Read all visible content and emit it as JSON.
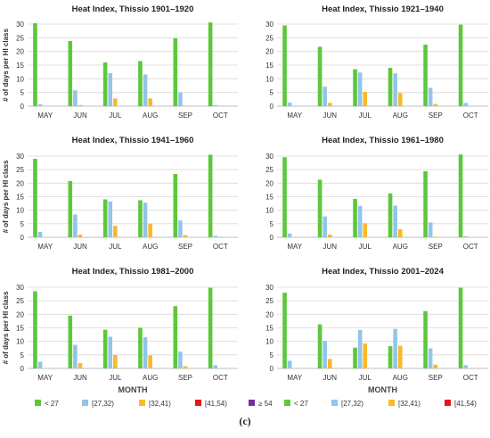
{
  "caption": "(c)",
  "chart_data": [
    {
      "type": "bar",
      "title": "Heat Index, Thissio 1901–1920",
      "ylabel": "# of days per HI class",
      "xlabel": "",
      "categories": [
        "MAY",
        "JUN",
        "JUL",
        "AUG",
        "SEP",
        "OCT"
      ],
      "ylim": [
        0,
        30
      ],
      "yticks": [
        0,
        5,
        10,
        15,
        20,
        25,
        30
      ],
      "series": [
        {
          "name": "< 27",
          "color": "#5cc83a",
          "values": [
            30.3,
            23.8,
            16.0,
            16.5,
            24.8,
            30.6
          ]
        },
        {
          "name": "[27,32)",
          "color": "#92c5ea",
          "values": [
            0.7,
            5.8,
            12.1,
            11.6,
            5.0,
            0.4
          ]
        },
        {
          "name": "[32,41)",
          "color": "#f9b928",
          "values": [
            0,
            0.4,
            2.8,
            2.8,
            0.2,
            0
          ]
        },
        {
          "name": "[41,54)",
          "color": "#e8141b",
          "values": [
            0,
            0,
            0,
            0,
            0,
            0
          ]
        },
        {
          "name": "≥ 54",
          "color": "#7030a0",
          "values": [
            0,
            0,
            0,
            0,
            0,
            0
          ]
        }
      ]
    },
    {
      "type": "bar",
      "title": "Heat Index, Thissio 1921–1940",
      "ylabel": "",
      "xlabel": "",
      "categories": [
        "MAY",
        "JUN",
        "JUL",
        "AUG",
        "SEP",
        "OCT"
      ],
      "ylim": [
        0,
        30
      ],
      "yticks": [
        0,
        5,
        10,
        15,
        20,
        25,
        30
      ],
      "series": [
        {
          "name": "< 27",
          "color": "#5cc83a",
          "values": [
            29.5,
            21.7,
            13.5,
            14.0,
            22.5,
            29.8
          ]
        },
        {
          "name": "[27,32)",
          "color": "#92c5ea",
          "values": [
            1.3,
            7.1,
            12.3,
            12.0,
            6.7,
            1.2
          ]
        },
        {
          "name": "[32,41)",
          "color": "#f9b928",
          "values": [
            0,
            1.2,
            5.2,
            4.8,
            0.8,
            0
          ]
        },
        {
          "name": "[41,54)",
          "color": "#e8141b",
          "values": [
            0,
            0,
            0,
            0,
            0,
            0
          ]
        },
        {
          "name": "≥ 54",
          "color": "#7030a0",
          "values": [
            0,
            0,
            0,
            0,
            0,
            0
          ]
        }
      ]
    },
    {
      "type": "bar",
      "title": "Heat Index, Thissio 1941–1960",
      "ylabel": "# of days per HI class",
      "xlabel": "",
      "categories": [
        "MAY",
        "JUN",
        "JUL",
        "AUG",
        "SEP",
        "OCT"
      ],
      "ylim": [
        0,
        30
      ],
      "yticks": [
        0,
        5,
        10,
        15,
        20,
        25,
        30
      ],
      "series": [
        {
          "name": "< 27",
          "color": "#5cc83a",
          "values": [
            29.0,
            20.8,
            14.0,
            13.7,
            23.4,
            30.5
          ]
        },
        {
          "name": "[27,32)",
          "color": "#92c5ea",
          "values": [
            2.0,
            8.4,
            13.2,
            12.8,
            6.2,
            0.5
          ]
        },
        {
          "name": "[32,41)",
          "color": "#f9b928",
          "values": [
            0,
            1.0,
            4.2,
            5.0,
            0.8,
            0
          ]
        },
        {
          "name": "[41,54)",
          "color": "#e8141b",
          "values": [
            0,
            0,
            0,
            0,
            0,
            0
          ]
        },
        {
          "name": "≥ 54",
          "color": "#7030a0",
          "values": [
            0,
            0,
            0,
            0,
            0,
            0
          ]
        }
      ]
    },
    {
      "type": "bar",
      "title": "Heat Index, Thissio 1961–1980",
      "ylabel": "",
      "xlabel": "",
      "categories": [
        "MAY",
        "JUN",
        "JUL",
        "AUG",
        "SEP",
        "OCT"
      ],
      "ylim": [
        0,
        30
      ],
      "yticks": [
        0,
        5,
        10,
        15,
        20,
        25,
        30
      ],
      "series": [
        {
          "name": "< 27",
          "color": "#5cc83a",
          "values": [
            29.6,
            21.3,
            14.2,
            16.2,
            24.4,
            30.6
          ]
        },
        {
          "name": "[27,32)",
          "color": "#92c5ea",
          "values": [
            1.4,
            7.7,
            11.6,
            11.7,
            5.5,
            0.4
          ]
        },
        {
          "name": "[32,41)",
          "color": "#f9b928",
          "values": [
            0,
            1.0,
            5.2,
            3.0,
            0.2,
            0
          ]
        },
        {
          "name": "[41,54)",
          "color": "#e8141b",
          "values": [
            0,
            0,
            0,
            0,
            0,
            0
          ]
        },
        {
          "name": "≥ 54",
          "color": "#7030a0",
          "values": [
            0,
            0,
            0,
            0,
            0,
            0
          ]
        }
      ]
    },
    {
      "type": "bar",
      "title": "Heat Index, Thissio 1981–2000",
      "ylabel": "# of days per HI class",
      "xlabel": "MONTH",
      "categories": [
        "MAY",
        "JUN",
        "JUL",
        "AUG",
        "SEP",
        "OCT"
      ],
      "ylim": [
        0,
        30
      ],
      "yticks": [
        0,
        5,
        10,
        15,
        20,
        25,
        30
      ],
      "series": [
        {
          "name": "< 27",
          "color": "#5cc83a",
          "values": [
            28.5,
            19.5,
            14.3,
            15.0,
            23.0,
            29.8
          ]
        },
        {
          "name": "[27,32)",
          "color": "#92c5ea",
          "values": [
            2.5,
            8.7,
            11.7,
            11.5,
            6.2,
            1.2
          ]
        },
        {
          "name": "[32,41)",
          "color": "#f9b928",
          "values": [
            0,
            2.0,
            5.0,
            4.8,
            0.8,
            0
          ]
        },
        {
          "name": "[41,54)",
          "color": "#e8141b",
          "values": [
            0,
            0,
            0,
            0,
            0,
            0
          ]
        },
        {
          "name": "≥ 54",
          "color": "#7030a0",
          "values": [
            0,
            0,
            0,
            0,
            0,
            0
          ]
        }
      ]
    },
    {
      "type": "bar",
      "title": "Heat Index, Thissio 2001–2024",
      "ylabel": "",
      "xlabel": "MONTH",
      "categories": [
        "MAY",
        "JUN",
        "JUL",
        "AUG",
        "SEP",
        "OCT"
      ],
      "ylim": [
        0,
        30
      ],
      "yticks": [
        0,
        5,
        10,
        15,
        20,
        25,
        30
      ],
      "series": [
        {
          "name": "< 27",
          "color": "#5cc83a",
          "values": [
            28.0,
            16.3,
            7.7,
            8.2,
            21.2,
            29.8
          ]
        },
        {
          "name": "[27,32)",
          "color": "#92c5ea",
          "values": [
            2.8,
            10.2,
            14.2,
            14.6,
            7.4,
            1.2
          ]
        },
        {
          "name": "[32,41)",
          "color": "#f9b928",
          "values": [
            0,
            3.5,
            9.2,
            8.4,
            1.4,
            0
          ]
        },
        {
          "name": "[41,54)",
          "color": "#e8141b",
          "values": [
            0,
            0,
            0,
            0,
            0,
            0
          ]
        },
        {
          "name": "≥ 54",
          "color": "#7030a0",
          "values": [
            0,
            0,
            0,
            0,
            0,
            0
          ]
        }
      ]
    }
  ]
}
